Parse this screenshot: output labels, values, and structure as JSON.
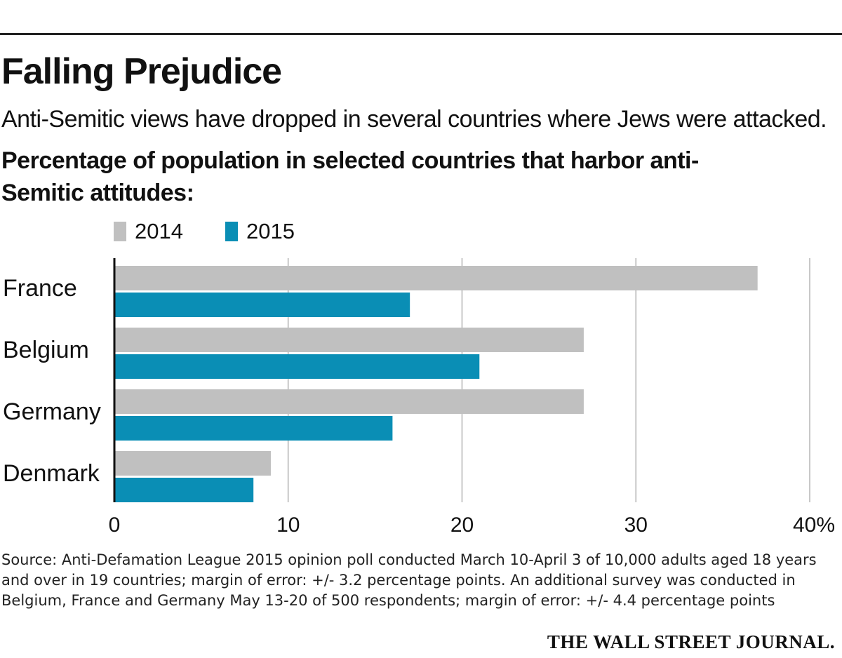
{
  "header": {
    "title": "Falling Prejudice",
    "subtitle": "Anti-Semitic views have dropped in several countries where Jews were attacked.",
    "measure": "Percentage of population in selected countries that harbor anti-Semitic attitudes:"
  },
  "colors": {
    "y2014": "#c0c0c0",
    "y2015": "#0a8eb5",
    "grid": "#c8c8c8",
    "axis": "#111111"
  },
  "chart_data": {
    "type": "bar",
    "orientation": "horizontal",
    "title": "Percentage of population in selected countries that harbor anti-Semitic attitudes:",
    "categories": [
      "France",
      "Belgium",
      "Germany",
      "Denmark"
    ],
    "series": [
      {
        "name": "2014",
        "values": [
          37,
          27,
          27,
          9
        ]
      },
      {
        "name": "2015",
        "values": [
          17,
          21,
          16,
          8
        ]
      }
    ],
    "xlim": [
      0,
      40
    ],
    "xticks": [
      0,
      10,
      20,
      30,
      40
    ],
    "xtick_labels": [
      "0",
      "10",
      "20",
      "30",
      "40%"
    ],
    "grid": true,
    "legend": "top-left"
  },
  "footer": {
    "source": "Source: Anti-Defamation League 2015 opinion poll conducted March 10-April 3 of 10,000 adults aged 18 years and over in 19 countries; margin of error: +/- 3.2 percentage points. An additional survey was conducted in Belgium, France and Germany May 13-20 of 500 respondents; margin of error: +/- 4.4 percentage points",
    "credit": "THE WALL STREET JOURNAL."
  }
}
